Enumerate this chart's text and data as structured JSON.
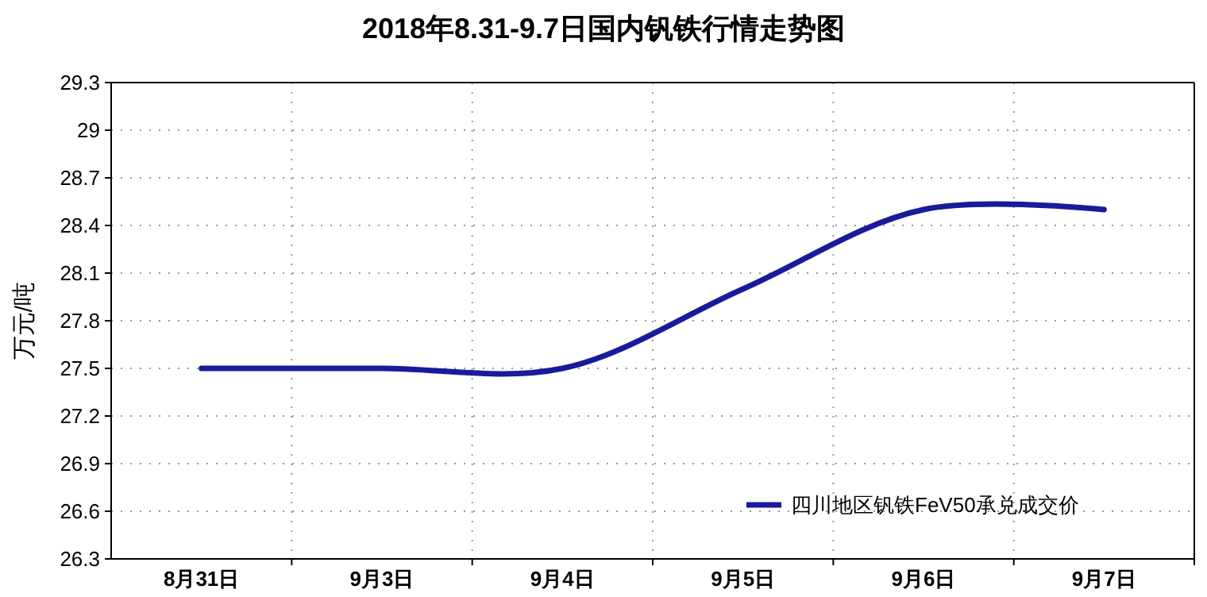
{
  "chart_data": {
    "type": "line",
    "title": "2018年8.31-9.7日国内钒铁行情走势图",
    "ylabel": "万元/吨",
    "categories": [
      "8月31日",
      "9月3日",
      "9月4日",
      "9月5日",
      "9月6日",
      "9月7日"
    ],
    "series": [
      {
        "name": "四川地区钒铁FeV50承兑成交价",
        "color": "#1a1a9c",
        "values": [
          27.5,
          27.5,
          27.5,
          28.0,
          28.5,
          28.5
        ]
      }
    ],
    "ylim": [
      26.3,
      29.3
    ],
    "yticks": [
      26.3,
      26.6,
      26.9,
      27.2,
      27.5,
      27.8,
      28.1,
      28.4,
      28.7,
      29,
      29.3
    ],
    "grid": true,
    "legend": "bottom right",
    "marker": "none",
    "line_style": "solid"
  }
}
